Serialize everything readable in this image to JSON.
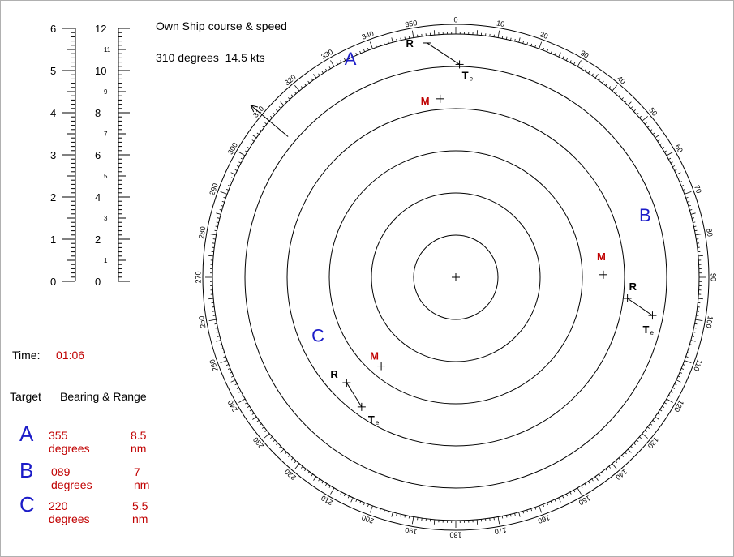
{
  "own_ship": {
    "title": "Own Ship course & speed",
    "course": "310 degrees",
    "speed": "14.5 kts",
    "heading_deg": 310
  },
  "time": {
    "label": "Time:",
    "value": "01:06"
  },
  "table": {
    "col_target": "Target",
    "col_bearing_range": "Bearing & Range",
    "rows": [
      {
        "id": "A",
        "bearing": "355 degrees",
        "range": "8.5 nm"
      },
      {
        "id": "B",
        "bearing": "089 degrees",
        "range": "7 nm"
      },
      {
        "id": "C",
        "bearing": "220 degrees",
        "range": "5.5 nm"
      }
    ]
  },
  "scale": {
    "left_labels": [
      "0",
      "1",
      "2",
      "3",
      "4",
      "5",
      "6"
    ],
    "right_major_labels": [
      "0",
      "2",
      "4",
      "6",
      "8",
      "10",
      "12"
    ],
    "right_minor_labels": [
      "1",
      "3",
      "5",
      "7",
      "9",
      "11"
    ]
  },
  "plot": {
    "range_rings_nm": [
      2,
      4,
      6,
      8,
      10,
      12
    ],
    "bearing_labels": [
      "0",
      "10",
      "20",
      "30",
      "40",
      "50",
      "60",
      "70",
      "80",
      "90",
      "100",
      "110",
      "120",
      "130",
      "140",
      "150",
      "160",
      "170",
      "180",
      "190",
      "200",
      "210",
      "220",
      "230",
      "240",
      "250",
      "260",
      "270",
      "280",
      "290",
      "300",
      "310",
      "320",
      "330",
      "340",
      "350"
    ],
    "targets": [
      {
        "id": "A",
        "M": {
          "bearing": 355,
          "range": 8.5
        },
        "R": {
          "bearing": 353,
          "range": 11.2
        },
        "Te": {
          "bearing": 1,
          "range": 10.1
        }
      },
      {
        "id": "B",
        "M": {
          "bearing": 89,
          "range": 7.0
        },
        "R": {
          "bearing": 97,
          "range": 8.2
        },
        "Te": {
          "bearing": 101,
          "range": 9.5
        }
      },
      {
        "id": "C",
        "M": {
          "bearing": 220,
          "range": 5.5
        },
        "R": {
          "bearing": 226,
          "range": 7.2
        },
        "Te": {
          "bearing": 216,
          "range": 7.6
        }
      }
    ],
    "point_labels": {
      "M": "M",
      "R": "R",
      "T": "T",
      "e": "e"
    }
  },
  "colors": {
    "blue": "#1c1cc8",
    "red": "#c00000",
    "black": "#000000"
  }
}
